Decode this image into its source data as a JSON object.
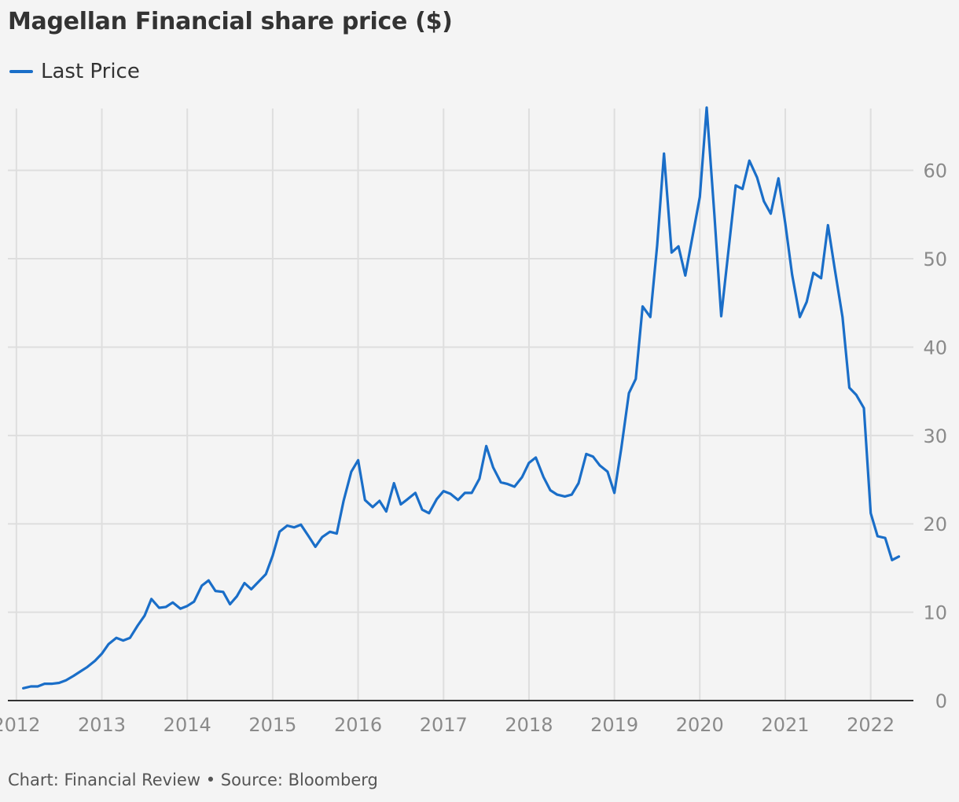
{
  "title": "Magellan Financial share price ($)",
  "footer": "Chart: Financial Review • Source: Bloomberg",
  "colors": {
    "line": "#1a6ec8",
    "grid": "#dedede",
    "axis": "#333333",
    "tick": "#8a8a8a",
    "background": "#f4f4f4"
  },
  "chart_data": {
    "type": "line",
    "title": "Magellan Financial share price ($)",
    "xlabel": "",
    "ylabel": "",
    "grid": true,
    "legend_position": "top-left",
    "y_axis_side": "right",
    "xlim": [
      2011.9,
      2022.5
    ],
    "ylim": [
      0,
      67
    ],
    "x_ticks": [
      2012,
      2013,
      2014,
      2015,
      2016,
      2017,
      2018,
      2019,
      2020,
      2021,
      2022
    ],
    "x_tick_labels": [
      "2012",
      "2013",
      "2014",
      "2015",
      "2016",
      "2017",
      "2018",
      "2019",
      "2020",
      "2021",
      "2022"
    ],
    "y_ticks": [
      0,
      10,
      20,
      30,
      40,
      50,
      60
    ],
    "y_tick_labels": [
      "0",
      "10",
      "20",
      "30",
      "40",
      "50",
      "60"
    ],
    "series": [
      {
        "name": "Last Price",
        "color": "#1a6ec8",
        "x": [
          2012.08,
          2012.17,
          2012.25,
          2012.33,
          2012.42,
          2012.5,
          2012.58,
          2012.67,
          2012.75,
          2012.83,
          2012.92,
          2013.0,
          2013.08,
          2013.17,
          2013.25,
          2013.33,
          2013.42,
          2013.5,
          2013.58,
          2013.67,
          2013.75,
          2013.83,
          2013.92,
          2014.0,
          2014.08,
          2014.17,
          2014.25,
          2014.33,
          2014.42,
          2014.5,
          2014.58,
          2014.67,
          2014.75,
          2014.83,
          2014.92,
          2015.0,
          2015.08,
          2015.17,
          2015.25,
          2015.33,
          2015.42,
          2015.5,
          2015.58,
          2015.67,
          2015.75,
          2015.83,
          2015.92,
          2016.0,
          2016.08,
          2016.17,
          2016.25,
          2016.33,
          2016.42,
          2016.5,
          2016.58,
          2016.67,
          2016.75,
          2016.83,
          2016.92,
          2017.0,
          2017.08,
          2017.17,
          2017.25,
          2017.33,
          2017.42,
          2017.5,
          2017.58,
          2017.67,
          2017.75,
          2017.83,
          2017.92,
          2018.0,
          2018.08,
          2018.17,
          2018.25,
          2018.33,
          2018.42,
          2018.5,
          2018.58,
          2018.67,
          2018.75,
          2018.83,
          2018.92,
          2019.0,
          2019.08,
          2019.17,
          2019.25,
          2019.33,
          2019.42,
          2019.5,
          2019.58,
          2019.67,
          2019.75,
          2019.83,
          2019.92,
          2020.0,
          2020.08,
          2020.17,
          2020.25,
          2020.33,
          2020.42,
          2020.5,
          2020.58,
          2020.67,
          2020.75,
          2020.83,
          2020.92,
          2021.0,
          2021.08,
          2021.17,
          2021.25,
          2021.33,
          2021.42,
          2021.5,
          2021.58,
          2021.67,
          2021.75,
          2021.83,
          2021.92,
          2022.0,
          2022.08,
          2022.17,
          2022.25,
          2022.33
        ],
        "values": [
          1.4,
          1.6,
          1.6,
          1.9,
          1.9,
          2.0,
          2.3,
          2.8,
          3.3,
          3.8,
          4.5,
          5.3,
          6.4,
          7.1,
          6.8,
          7.1,
          8.5,
          9.6,
          11.5,
          10.5,
          10.6,
          11.1,
          10.4,
          10.7,
          11.2,
          13.0,
          13.6,
          12.4,
          12.3,
          10.9,
          11.8,
          13.3,
          12.6,
          13.4,
          14.3,
          16.4,
          19.1,
          19.8,
          19.6,
          19.9,
          18.6,
          17.4,
          18.5,
          19.1,
          18.9,
          22.6,
          25.9,
          27.2,
          22.7,
          21.9,
          22.6,
          21.4,
          24.6,
          22.2,
          22.8,
          23.5,
          21.6,
          21.2,
          22.8,
          23.7,
          23.4,
          22.7,
          23.5,
          23.5,
          25.1,
          28.8,
          26.4,
          24.7,
          24.5,
          24.2,
          25.3,
          26.9,
          27.5,
          25.3,
          23.8,
          23.3,
          23.1,
          23.3,
          24.6,
          27.9,
          27.6,
          26.6,
          25.9,
          23.5,
          28.5,
          34.8,
          36.4,
          44.6,
          43.4,
          51.5,
          61.9,
          50.7,
          51.4,
          48.1,
          52.8,
          57.0,
          67.1,
          55.0,
          43.5,
          50.5,
          58.3,
          57.9,
          61.1,
          59.2,
          56.5,
          55.1,
          59.1,
          54.0,
          48.2,
          43.4,
          45.1,
          48.4,
          47.8,
          53.8,
          48.8,
          43.4,
          35.4,
          34.6,
          33.1,
          21.2,
          18.6,
          18.4,
          15.9,
          16.3
        ]
      }
    ]
  },
  "legend": {
    "label": "Last Price"
  }
}
